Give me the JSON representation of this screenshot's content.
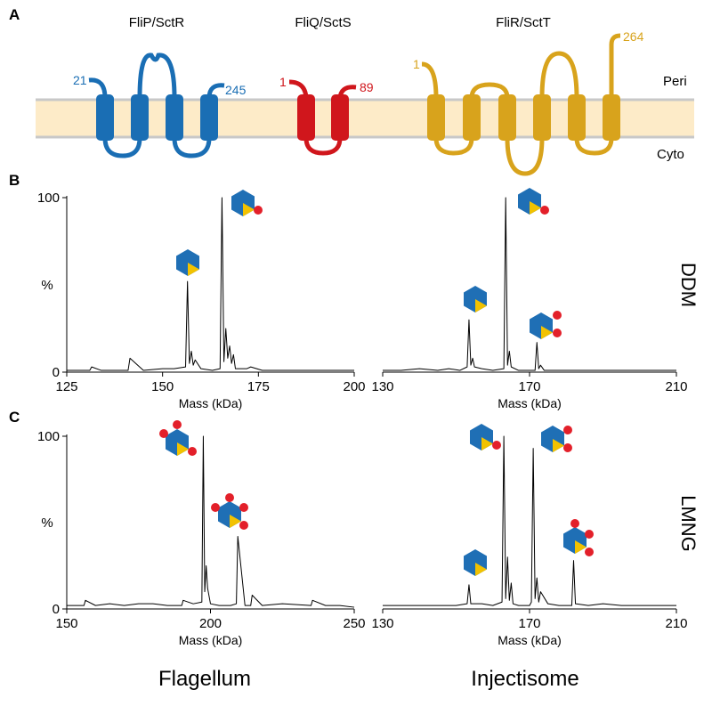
{
  "panel_a": {
    "letter": "A",
    "proteins": [
      {
        "name": "FliP/SctR",
        "n_term": "21",
        "c_term": "245"
      },
      {
        "name": "FliQ/SctS",
        "n_term": "1",
        "c_term": "89"
      },
      {
        "name": "FliR/SctT",
        "n_term": "1",
        "c_term": "264"
      }
    ],
    "peri": "Peri",
    "cyto": "Cyto"
  },
  "panel_b": {
    "letter": "B",
    "condition": "DDM"
  },
  "panel_c": {
    "letter": "C",
    "condition": "LMNG"
  },
  "columns": [
    "Flagellum",
    "Injectisome"
  ],
  "chart_data": [
    {
      "type": "line",
      "x_label": "Mass (kDa)",
      "y_label": "%",
      "xlim": [
        125,
        200
      ],
      "xticks": [
        125,
        150,
        175,
        200
      ],
      "ylim": [
        0,
        100
      ],
      "yticks": [
        0,
        100
      ],
      "x": [
        125,
        128,
        131,
        131.5,
        134,
        138,
        141,
        141.5,
        145,
        150,
        153,
        156,
        156.5,
        157,
        157.5,
        158,
        158.5,
        160,
        163,
        165,
        165.5,
        166,
        166.5,
        167,
        167.5,
        168,
        168.5,
        169,
        172,
        173,
        176,
        180,
        185,
        190,
        195,
        200
      ],
      "values": [
        1,
        1,
        1,
        3,
        1,
        1,
        1,
        8,
        1,
        2,
        2,
        3,
        52,
        5,
        12,
        4,
        7,
        2,
        1,
        2,
        100,
        6,
        25,
        8,
        15,
        5,
        10,
        2,
        2,
        3,
        1,
        1,
        1,
        1,
        1,
        1
      ]
    },
    {
      "type": "line",
      "x_label": "Mass (kDa)",
      "xlim": [
        130,
        210
      ],
      "xticks": [
        130,
        170,
        210
      ],
      "ylim": [
        0,
        100
      ],
      "x": [
        130,
        135,
        140,
        145,
        148,
        151,
        153,
        153.5,
        154,
        154.5,
        155,
        157,
        160,
        163,
        163.5,
        164,
        164.5,
        165,
        167,
        170,
        171.5,
        172,
        172.5,
        173,
        174,
        178,
        185,
        195,
        210
      ],
      "values": [
        1,
        1,
        2,
        1,
        2,
        1,
        3,
        30,
        4,
        8,
        3,
        2,
        1,
        2,
        100,
        4,
        12,
        3,
        1,
        1,
        1,
        17,
        2,
        4,
        1,
        1,
        1,
        1,
        1
      ]
    },
    {
      "type": "line",
      "x_label": "Mass (kDa)",
      "y_label": "%",
      "xlim": [
        150,
        250
      ],
      "xticks": [
        150,
        200,
        250
      ],
      "ylim": [
        0,
        100
      ],
      "yticks": [
        0,
        100
      ],
      "x": [
        150,
        153,
        156,
        156.5,
        160,
        165,
        170,
        175,
        180,
        185,
        190,
        190.5,
        194,
        197,
        197.5,
        198,
        198.5,
        199,
        200,
        203,
        207,
        209,
        209.5,
        212,
        214,
        214.5,
        218,
        225,
        235,
        235.5,
        240,
        245,
        250
      ],
      "values": [
        2,
        2,
        2,
        5,
        2,
        3,
        2,
        3,
        3,
        2,
        2,
        5,
        3,
        4,
        100,
        10,
        25,
        12,
        3,
        2,
        2,
        3,
        42,
        2,
        2,
        8,
        2,
        3,
        2,
        5,
        2,
        2,
        1
      ]
    },
    {
      "type": "line",
      "x_label": "Mass (kDa)",
      "xlim": [
        130,
        210
      ],
      "xticks": [
        130,
        170,
        210
      ],
      "ylim": [
        0,
        100
      ],
      "x": [
        130,
        135,
        140,
        145,
        150,
        153,
        153.5,
        154,
        157,
        160,
        162.5,
        163,
        163.5,
        164,
        164.5,
        165,
        165.5,
        167,
        170,
        170.5,
        171,
        171.5,
        172,
        172.5,
        173,
        175,
        178,
        181.5,
        182,
        182.5,
        186,
        190,
        195,
        200,
        205,
        210
      ],
      "values": [
        2,
        2,
        2,
        2,
        2,
        3,
        14,
        3,
        3,
        2,
        4,
        100,
        6,
        30,
        5,
        15,
        3,
        2,
        2,
        4,
        93,
        6,
        18,
        4,
        10,
        3,
        2,
        2,
        28,
        3,
        2,
        3,
        2,
        2,
        2,
        2
      ]
    }
  ]
}
